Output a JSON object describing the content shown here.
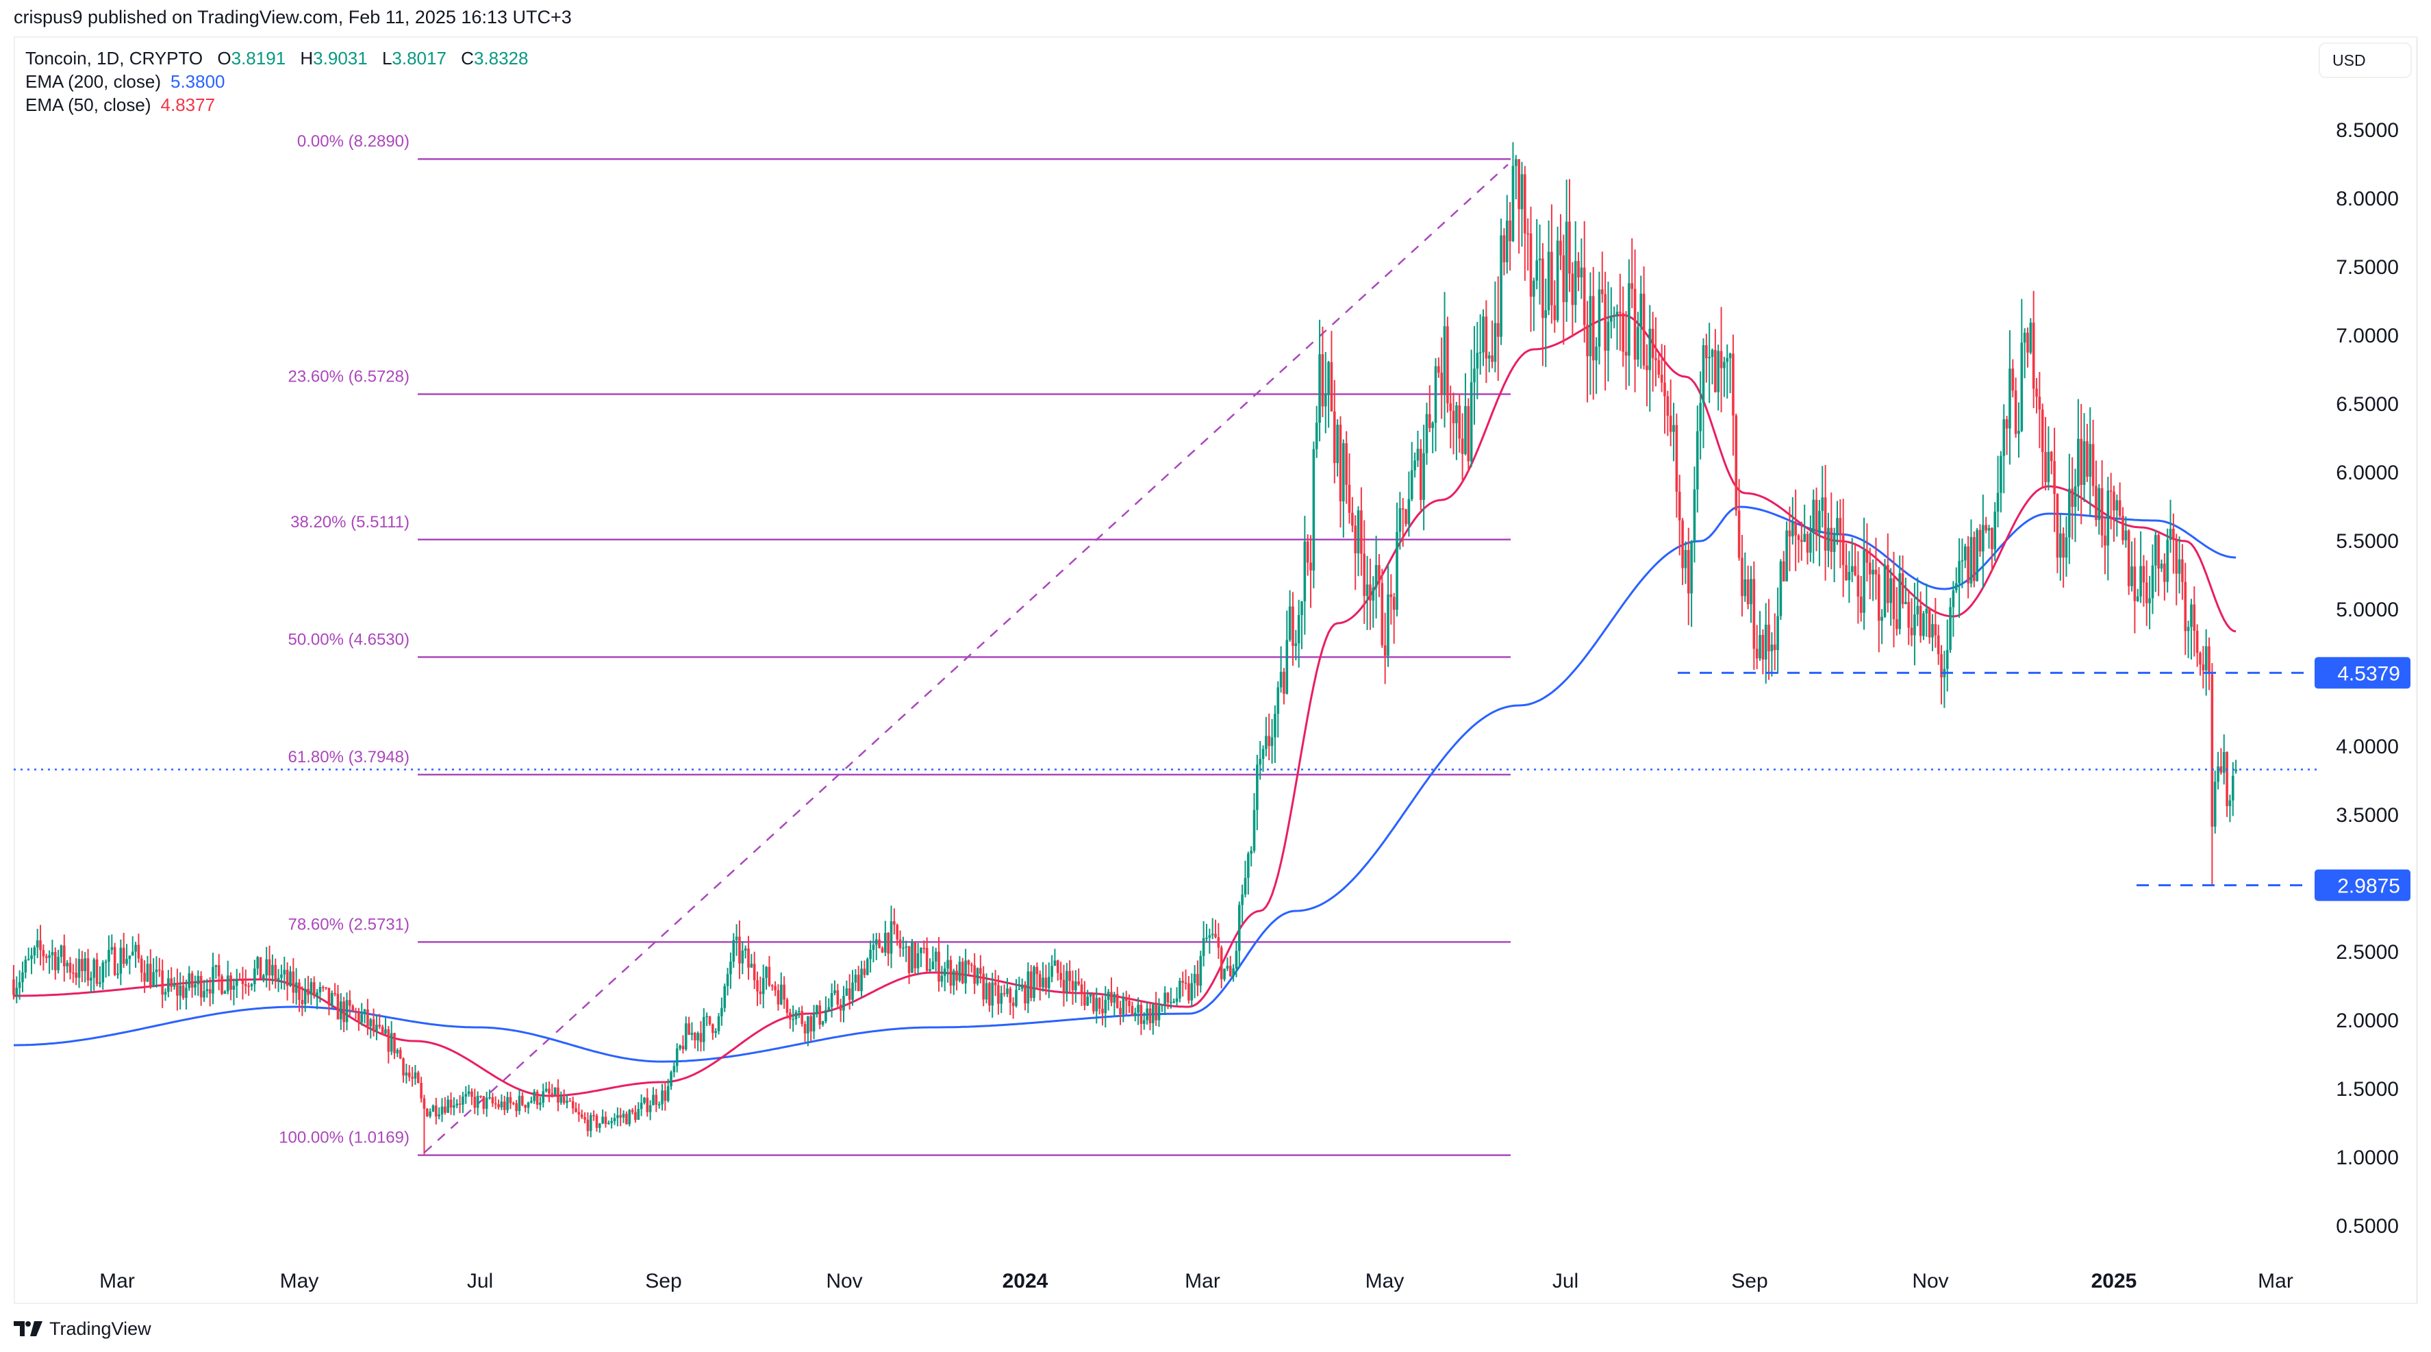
{
  "header": {
    "published": "crispus9 published on TradingView.com, Feb 11, 2025 16:13 UTC+3"
  },
  "legend": {
    "symbol": "Toncoin, 1D, CRYPTO",
    "ohlc": [
      {
        "key": "O",
        "value": "3.8191"
      },
      {
        "key": "H",
        "value": "3.9031"
      },
      {
        "key": "L",
        "value": "3.8017"
      },
      {
        "key": "C",
        "value": "3.8328"
      }
    ],
    "ema200": {
      "label": "EMA (200, close)",
      "value": "5.3800"
    },
    "ema50": {
      "label": "EMA (50, close)",
      "value": "4.8377"
    }
  },
  "price_scale": {
    "currency": "USD",
    "ticks": [
      "8.5000",
      "8.0000",
      "7.5000",
      "7.0000",
      "6.5000",
      "6.0000",
      "5.5000",
      "5.0000",
      "4.0000",
      "3.5000",
      "2.5000",
      "2.0000",
      "1.5000",
      "1.0000",
      "0.5000"
    ]
  },
  "time_scale": {
    "ticks": [
      {
        "label": "Mar",
        "bold": false
      },
      {
        "label": "May",
        "bold": false
      },
      {
        "label": "Jul",
        "bold": false
      },
      {
        "label": "Sep",
        "bold": false
      },
      {
        "label": "Nov",
        "bold": false
      },
      {
        "label": "2024",
        "bold": true
      },
      {
        "label": "Mar",
        "bold": false
      },
      {
        "label": "May",
        "bold": false
      },
      {
        "label": "Jul",
        "bold": false
      },
      {
        "label": "Sep",
        "bold": false
      },
      {
        "label": "Nov",
        "bold": false
      },
      {
        "label": "2025",
        "bold": true
      },
      {
        "label": "Mar",
        "bold": false
      }
    ]
  },
  "fibonacci": {
    "levels": [
      {
        "label": "0.00% (8.2890)",
        "ratio": 0.0,
        "price": 8.289
      },
      {
        "label": "23.60% (6.5728)",
        "ratio": 0.236,
        "price": 6.5728
      },
      {
        "label": "38.20% (5.5111)",
        "ratio": 0.382,
        "price": 5.5111
      },
      {
        "label": "50.00% (4.6530)",
        "ratio": 0.5,
        "price": 4.653
      },
      {
        "label": "61.80% (3.7948)",
        "ratio": 0.618,
        "price": 3.7948
      },
      {
        "label": "78.60% (2.5731)",
        "ratio": 0.786,
        "price": 2.5731
      },
      {
        "label": "100.00% (1.0169)",
        "ratio": 1.0,
        "price": 1.0169
      }
    ],
    "color": "#ab47bc"
  },
  "horizontal_lines": [
    {
      "label": "4.5379",
      "price": 4.5379,
      "color": "#2962ff"
    },
    {
      "label": "2.9875",
      "price": 2.9875,
      "color": "#2962ff"
    }
  ],
  "current_price": {
    "value": 3.8328,
    "color": "#2962ff"
  },
  "colors": {
    "up": "#089981",
    "down": "#f23645",
    "ema200": "#2962ff",
    "ema50": "#e91e63",
    "grid_border": "#f0f0f0",
    "text": "#131722"
  },
  "footer": {
    "brand": "TradingView"
  },
  "chart_data": {
    "type": "candlestick",
    "title": "Toncoin, 1D, CRYPTO",
    "xlabel": "",
    "ylabel": "USD",
    "ylim": [
      0.35,
      8.8
    ],
    "x_range": [
      "2023-01-26",
      "2025-02-11"
    ],
    "legend": [
      "EMA (200, close) 5.3800",
      "EMA (50, close) 4.8377"
    ],
    "last_bar": {
      "open": 3.8191,
      "high": 3.9031,
      "low": 3.8017,
      "close": 3.8328
    },
    "fibonacci_retracement": {
      "from": {
        "date": "2023-06-12",
        "price": 1.0169
      },
      "to": {
        "date": "2024-06-15",
        "price": 8.289
      },
      "levels": [
        [
          0.0,
          8.289
        ],
        [
          0.236,
          6.5728
        ],
        [
          0.382,
          5.5111
        ],
        [
          0.5,
          4.653
        ],
        [
          0.618,
          3.7948
        ],
        [
          0.786,
          2.5731
        ],
        [
          1.0,
          1.0169
        ]
      ]
    },
    "support_lines": [
      4.5379,
      2.9875
    ],
    "close_path": [
      [
        "2023-01-26",
        2.3
      ],
      [
        "2023-02-05",
        2.5
      ],
      [
        "2023-02-20",
        2.35
      ],
      [
        "2023-03-05",
        2.48
      ],
      [
        "2023-03-20",
        2.22
      ],
      [
        "2023-04-05",
        2.3
      ],
      [
        "2023-04-20",
        2.35
      ],
      [
        "2023-05-05",
        2.2
      ],
      [
        "2023-05-20",
        2.05
      ],
      [
        "2023-06-01",
        1.85
      ],
      [
        "2023-06-10",
        1.55
      ],
      [
        "2023-06-13",
        1.35
      ],
      [
        "2023-06-25",
        1.42
      ],
      [
        "2023-07-10",
        1.38
      ],
      [
        "2023-07-25",
        1.45
      ],
      [
        "2023-08-08",
        1.25
      ],
      [
        "2023-08-20",
        1.3
      ],
      [
        "2023-09-01",
        1.45
      ],
      [
        "2023-09-10",
        1.9
      ],
      [
        "2023-09-20",
        2.0
      ],
      [
        "2023-09-25",
        2.5
      ],
      [
        "2023-10-05",
        2.3
      ],
      [
        "2023-10-20",
        2.0
      ],
      [
        "2023-11-01",
        2.15
      ],
      [
        "2023-11-10",
        2.45
      ],
      [
        "2023-11-15",
        2.62
      ],
      [
        "2023-11-25",
        2.45
      ],
      [
        "2023-12-10",
        2.35
      ],
      [
        "2023-12-25",
        2.15
      ],
      [
        "2024-01-10",
        2.35
      ],
      [
        "2024-01-25",
        2.15
      ],
      [
        "2024-02-10",
        2.05
      ],
      [
        "2024-02-25",
        2.2
      ],
      [
        "2024-03-03",
        2.6
      ],
      [
        "2024-03-10",
        2.3
      ],
      [
        "2024-03-15",
        3.0
      ],
      [
        "2024-03-20",
        3.8
      ],
      [
        "2024-03-25",
        4.2
      ],
      [
        "2024-04-01",
        5.0
      ],
      [
        "2024-04-05",
        5.4
      ],
      [
        "2024-04-10",
        6.8
      ],
      [
        "2024-04-15",
        6.1
      ],
      [
        "2024-04-25",
        5.3
      ],
      [
        "2024-05-01",
        4.9
      ],
      [
        "2024-05-10",
        5.9
      ],
      [
        "2024-05-20",
        6.8
      ],
      [
        "2024-05-28",
        6.3
      ],
      [
        "2024-06-05",
        7.0
      ],
      [
        "2024-06-15",
        8.1
      ],
      [
        "2024-06-20",
        7.2
      ],
      [
        "2024-07-01",
        7.6
      ],
      [
        "2024-07-10",
        7.0
      ],
      [
        "2024-07-25",
        7.1
      ],
      [
        "2024-08-05",
        6.2
      ],
      [
        "2024-08-10",
        5.2
      ],
      [
        "2024-08-15",
        6.7
      ],
      [
        "2024-08-25",
        6.6
      ],
      [
        "2024-08-28",
        5.2
      ],
      [
        "2024-09-06",
        4.7
      ],
      [
        "2024-09-15",
        5.5
      ],
      [
        "2024-09-25",
        5.7
      ],
      [
        "2024-10-05",
        5.2
      ],
      [
        "2024-10-20",
        5.1
      ],
      [
        "2024-11-01",
        4.8
      ],
      [
        "2024-11-04",
        4.6
      ],
      [
        "2024-11-12",
        5.3
      ],
      [
        "2024-11-20",
        5.6
      ],
      [
        "2024-11-28",
        6.5
      ],
      [
        "2024-12-05",
        6.9
      ],
      [
        "2024-12-10",
        6.0
      ],
      [
        "2024-12-15",
        5.4
      ],
      [
        "2024-12-20",
        6.2
      ],
      [
        "2024-12-31",
        5.6
      ],
      [
        "2025-01-10",
        5.2
      ],
      [
        "2025-01-20",
        5.5
      ],
      [
        "2025-01-28",
        4.9
      ],
      [
        "2025-02-02",
        4.6
      ],
      [
        "2025-02-03",
        3.5
      ],
      [
        "2025-02-06",
        3.8
      ],
      [
        "2025-02-09",
        3.7
      ],
      [
        "2025-02-11",
        3.83
      ]
    ],
    "ema200_path": [
      [
        "2023-01-26",
        1.82
      ],
      [
        "2023-05-01",
        2.1
      ],
      [
        "2023-07-01",
        1.95
      ],
      [
        "2023-09-01",
        1.7
      ],
      [
        "2023-12-01",
        1.95
      ],
      [
        "2024-02-25",
        2.05
      ],
      [
        "2024-04-01",
        2.8
      ],
      [
        "2024-06-15",
        4.3
      ],
      [
        "2024-08-15",
        5.5
      ],
      [
        "2024-08-28",
        5.75
      ],
      [
        "2024-10-01",
        5.55
      ],
      [
        "2024-11-05",
        5.15
      ],
      [
        "2024-12-10",
        5.7
      ],
      [
        "2025-01-15",
        5.65
      ],
      [
        "2025-02-11",
        5.38
      ]
    ],
    "ema50_path": [
      [
        "2023-01-26",
        2.18
      ],
      [
        "2023-04-20",
        2.3
      ],
      [
        "2023-06-10",
        1.85
      ],
      [
        "2023-07-25",
        1.45
      ],
      [
        "2023-09-01",
        1.55
      ],
      [
        "2023-10-20",
        2.05
      ],
      [
        "2023-12-01",
        2.35
      ],
      [
        "2024-01-20",
        2.2
      ],
      [
        "2024-02-25",
        2.1
      ],
      [
        "2024-03-20",
        2.8
      ],
      [
        "2024-04-15",
        4.9
      ],
      [
        "2024-05-20",
        5.8
      ],
      [
        "2024-06-20",
        6.9
      ],
      [
        "2024-07-20",
        7.15
      ],
      [
        "2024-08-10",
        6.7
      ],
      [
        "2024-08-30",
        5.85
      ],
      [
        "2024-10-01",
        5.5
      ],
      [
        "2024-11-08",
        4.95
      ],
      [
        "2024-12-10",
        5.9
      ],
      [
        "2025-01-10",
        5.6
      ],
      [
        "2025-01-25",
        5.5
      ],
      [
        "2025-02-11",
        4.84
      ]
    ]
  }
}
